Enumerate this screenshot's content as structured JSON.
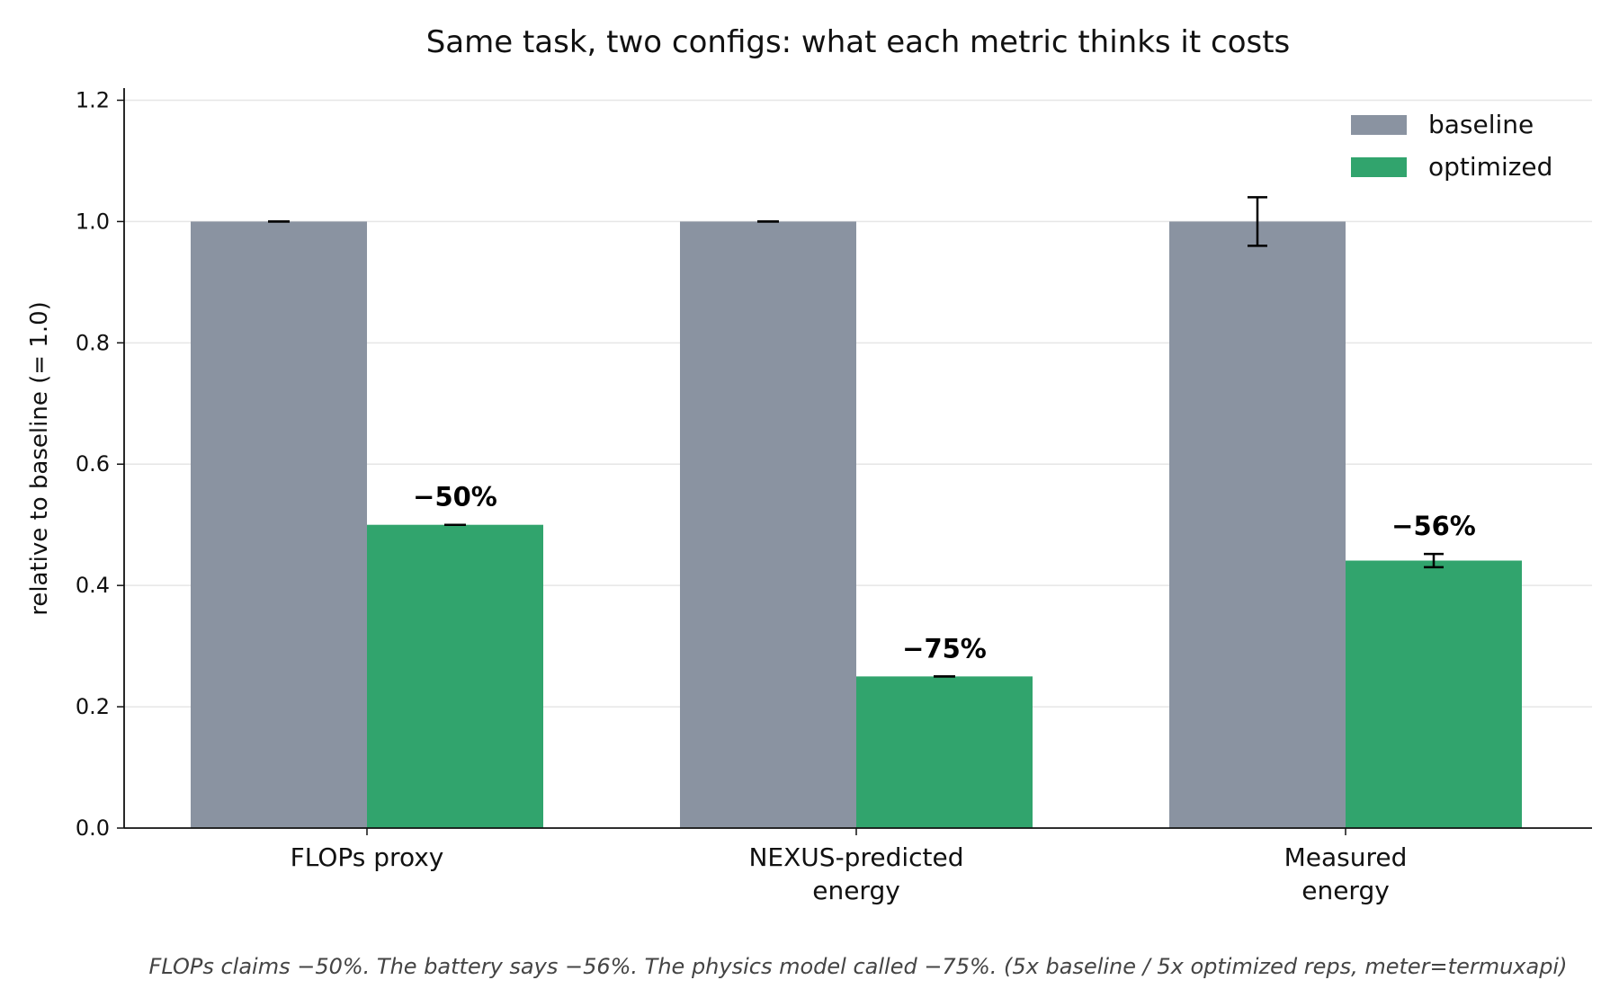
{
  "chart_data": {
    "type": "bar",
    "title": "Same task, two configs: what each metric thinks it costs",
    "xlabel": "",
    "ylabel": "relative to baseline (= 1.0)",
    "ylim": [
      0,
      1.22
    ],
    "yticks": [
      0.0,
      0.2,
      0.4,
      0.6,
      0.8,
      1.0,
      1.2
    ],
    "ytick_labels": [
      "0.0",
      "0.2",
      "0.4",
      "0.6",
      "0.8",
      "1.0",
      "1.2"
    ],
    "categories": [
      [
        "FLOPs proxy"
      ],
      [
        "NEXUS-predicted",
        "energy"
      ],
      [
        "Measured",
        "energy"
      ]
    ],
    "series": [
      {
        "name": "baseline",
        "color": "#8a93a1",
        "values": [
          1.0,
          1.0,
          1.0
        ],
        "errors": [
          0.0,
          0.0,
          0.04
        ]
      },
      {
        "name": "optimized",
        "color": "#31a46d",
        "values": [
          0.5,
          0.25,
          0.441
        ],
        "errors": [
          0.0,
          0.0,
          0.011
        ]
      }
    ],
    "annotations": [
      "−50%",
      "−75%",
      "−56%"
    ],
    "legend": "top-right",
    "grid": "horizontal",
    "caption": "FLOPs claims −50%. The battery says −56%. The physics model called −75%.   (5x baseline / 5x optimized reps, meter=termuxapi)"
  }
}
